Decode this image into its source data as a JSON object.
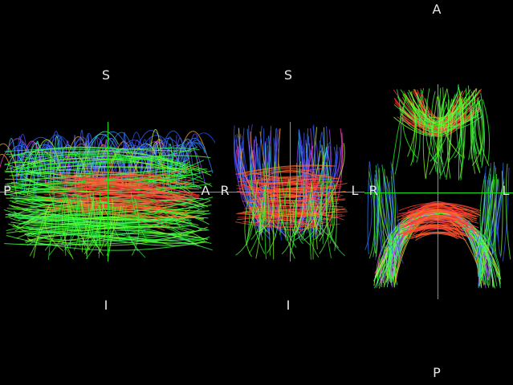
{
  "views": {
    "sagittal": {
      "orientation_labels": {
        "top": "S",
        "bottom": "I",
        "left": "P",
        "right": "A"
      }
    },
    "coronal": {
      "orientation_labels": {
        "top": "S",
        "bottom": "I",
        "left": "R",
        "right": "L"
      }
    },
    "axial": {
      "orientation_labels": {
        "top": "A",
        "bottom": "P",
        "left": "R",
        "right": "L"
      }
    }
  },
  "colors": {
    "background": "#000000",
    "crosshair": "#19e619",
    "label": "#e8e8e8",
    "fiber_left_right": "#ff2a2a",
    "fiber_anterior_posterior": "#2aff2a",
    "fiber_superior_inferior": "#2a5aff"
  }
}
